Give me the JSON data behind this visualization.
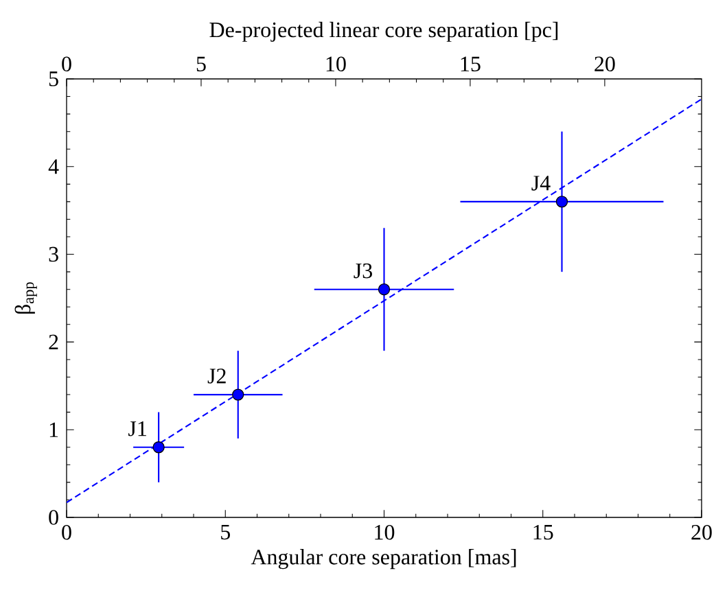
{
  "chart_data": {
    "type": "scatter",
    "xlabel": "Angular core separation [mas]",
    "ylabel": "β$_{app}$",
    "x2label": "De-projected linear core separation [pc]",
    "xlim": [
      0,
      20
    ],
    "xticks": [
      0,
      5,
      10,
      15,
      20
    ],
    "ylim": [
      0,
      5
    ],
    "yticks": [
      0,
      1,
      2,
      3,
      4,
      5
    ],
    "x2lim": [
      0,
      23.6
    ],
    "x2ticks": [
      0,
      5,
      10,
      15,
      20
    ],
    "marker": "circle",
    "series": [
      {
        "color": "#0000ff",
        "x": [
          2.9,
          5.4,
          10.0,
          15.6
        ],
        "values": [
          0.8,
          1.4,
          2.6,
          3.6
        ],
        "xerrors": [
          0.8,
          1.4,
          2.2,
          3.2
        ],
        "errors": [
          0.4,
          0.5,
          0.7,
          0.8
        ]
      },
      {
        "type": "line",
        "color": "#0000ff",
        "line_style": "dashed",
        "marker": "none",
        "x": [
          0,
          20
        ],
        "values": [
          0.17,
          4.77
        ]
      }
    ],
    "annotations": [
      {
        "text": "J1",
        "x": 2.9,
        "y": 0.8
      },
      {
        "text": "J2",
        "x": 5.4,
        "y": 1.4
      },
      {
        "text": "J3",
        "x": 10.0,
        "y": 2.6
      },
      {
        "text": "J4",
        "x": 15.6,
        "y": 3.6
      }
    ]
  }
}
